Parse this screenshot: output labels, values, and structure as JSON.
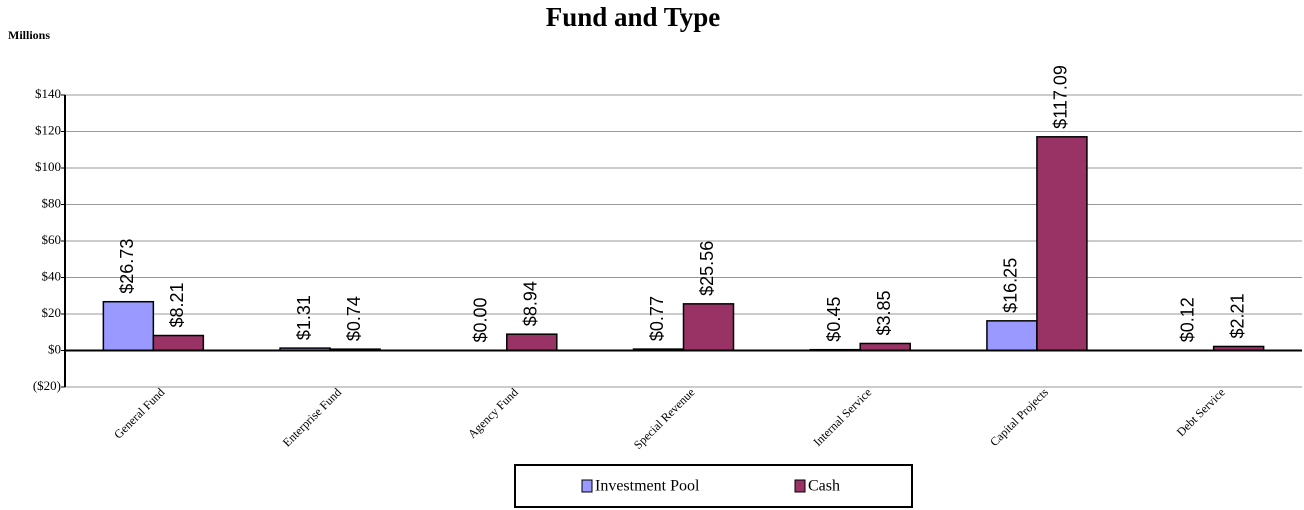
{
  "chart_data": {
    "type": "bar",
    "title": "Fund and Type",
    "y_label": "Millions",
    "categories": [
      "General Fund",
      "Enterprise Fund",
      "Agency Fund",
      "Special Revenue",
      "Internal Service",
      "Capital Projects",
      "Debt Service"
    ],
    "series": [
      {
        "name": "Investment Pool",
        "color": "#9999ff",
        "values": [
          26.73,
          1.31,
          0.0,
          0.77,
          0.45,
          16.25,
          0.12
        ],
        "value_labels": [
          "$26.73",
          "$1.31",
          "$0.00",
          "$0.77",
          "$0.45",
          "$16.25",
          "$0.12"
        ]
      },
      {
        "name": "Cash",
        "color": "#993366",
        "values": [
          8.21,
          0.74,
          8.94,
          25.56,
          3.85,
          117.09,
          2.21
        ],
        "value_labels": [
          "$8.21",
          "$0.74",
          "$8.94",
          "$25.56",
          "$3.85",
          "$117.09",
          "$2.21"
        ]
      }
    ],
    "ylim": [
      -20,
      140
    ],
    "yticks": [
      {
        "value": -20,
        "label": "($20)"
      },
      {
        "value": 0,
        "label": "$0"
      },
      {
        "value": 20,
        "label": "$20"
      },
      {
        "value": 40,
        "label": "$40"
      },
      {
        "value": 60,
        "label": "$60"
      },
      {
        "value": 80,
        "label": "$80"
      },
      {
        "value": 100,
        "label": "$100"
      },
      {
        "value": 120,
        "label": "$120"
      },
      {
        "value": 140,
        "label": "$140"
      }
    ],
    "grid": true,
    "legend": "bottom"
  }
}
